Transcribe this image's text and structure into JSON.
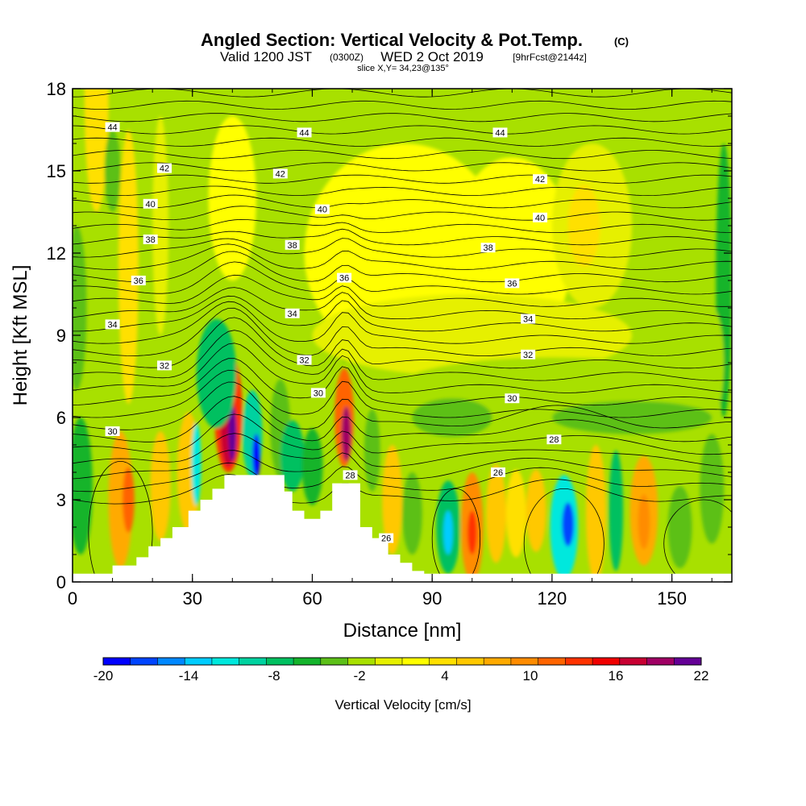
{
  "header": {
    "title_main": "Angled Section: Vertical Velocity & Pot.Temp.",
    "title_units": "(C)",
    "valid_prefix": "Valid 1200 JST",
    "valid_utc": "(0300Z)",
    "valid_date": "WED 2 Oct 2019",
    "forecast": "[9hrFcst@2144z]",
    "slice": "slice X,Y= 34,23@135°"
  },
  "chart_data": {
    "type": "heatmap",
    "xlabel": "Distance [nm]",
    "ylabel": "Height [Kft MSL]",
    "xlim": [
      0,
      165
    ],
    "ylim": [
      0,
      18
    ],
    "x_ticks": [
      "0",
      "30",
      "60",
      "90",
      "120",
      "150"
    ],
    "x_tick_values": [
      0,
      30,
      60,
      90,
      120,
      150
    ],
    "y_ticks": [
      "0",
      "3",
      "6",
      "9",
      "12",
      "15",
      "18"
    ],
    "y_tick_values": [
      0,
      3,
      6,
      9,
      12,
      15,
      18
    ],
    "colorbar": {
      "label": "Vertical Velocity [cm/s]",
      "tick_labels": [
        "-20",
        "-14",
        "-8",
        "-2",
        "4",
        "10",
        "16",
        "22"
      ],
      "min": -20,
      "max": 22,
      "step": 2,
      "colors": [
        "#0000ff",
        "#0044ff",
        "#0088ff",
        "#00ccff",
        "#00e8dd",
        "#00d2a0",
        "#00c060",
        "#14b42c",
        "#5cc018",
        "#a8e000",
        "#e6f000",
        "#ffff00",
        "#ffe000",
        "#ffc800",
        "#ffaa00",
        "#ff8c00",
        "#ff6400",
        "#ff3200",
        "#f00000",
        "#c80032",
        "#a00064",
        "#640096"
      ]
    },
    "contour_labels": [
      {
        "text": "44",
        "x": 10,
        "y": 16.6
      },
      {
        "text": "44",
        "x": 58,
        "y": 16.4
      },
      {
        "text": "44",
        "x": 107,
        "y": 16.4
      },
      {
        "text": "42",
        "x": 23,
        "y": 15.1
      },
      {
        "text": "42",
        "x": 52,
        "y": 14.9
      },
      {
        "text": "42",
        "x": 117,
        "y": 14.7
      },
      {
        "text": "40",
        "x": 19.5,
        "y": 13.8
      },
      {
        "text": "40",
        "x": 62.5,
        "y": 13.6
      },
      {
        "text": "40",
        "x": 117,
        "y": 13.3
      },
      {
        "text": "38",
        "x": 19.5,
        "y": 12.5
      },
      {
        "text": "38",
        "x": 55,
        "y": 12.3
      },
      {
        "text": "38",
        "x": 104,
        "y": 12.2
      },
      {
        "text": "36",
        "x": 16.5,
        "y": 11.0
      },
      {
        "text": "36",
        "x": 68,
        "y": 11.1
      },
      {
        "text": "36",
        "x": 110,
        "y": 10.9
      },
      {
        "text": "34",
        "x": 10,
        "y": 9.4
      },
      {
        "text": "34",
        "x": 55,
        "y": 9.8
      },
      {
        "text": "34",
        "x": 114,
        "y": 9.6
      },
      {
        "text": "32",
        "x": 23,
        "y": 7.9
      },
      {
        "text": "32",
        "x": 58,
        "y": 8.1
      },
      {
        "text": "32",
        "x": 114,
        "y": 8.3
      },
      {
        "text": "30",
        "x": 10,
        "y": 5.5
      },
      {
        "text": "30",
        "x": 61.5,
        "y": 6.9
      },
      {
        "text": "30",
        "x": 110,
        "y": 6.7
      },
      {
        "text": "28",
        "x": 69.5,
        "y": 3.9
      },
      {
        "text": "28",
        "x": 120.5,
        "y": 5.2
      },
      {
        "text": "26",
        "x": 106.5,
        "y": 4.0
      },
      {
        "text": "26",
        "x": 78.5,
        "y": 1.6
      }
    ],
    "terrain_profile_x": [
      0,
      10,
      16,
      19,
      22,
      25,
      29,
      32,
      35,
      38,
      42,
      46,
      50,
      53,
      55,
      58,
      62,
      65,
      69,
      72,
      75,
      79,
      82,
      85,
      88,
      165
    ],
    "terrain_profile_y": [
      0.3,
      0.6,
      0.9,
      1.3,
      1.6,
      2.0,
      2.6,
      3.0,
      3.4,
      3.9,
      3.9,
      3.9,
      3.9,
      3.3,
      2.6,
      2.3,
      2.6,
      3.6,
      3.6,
      2.0,
      1.6,
      1.0,
      0.7,
      0.4,
      0.3,
      0.3
    ]
  }
}
